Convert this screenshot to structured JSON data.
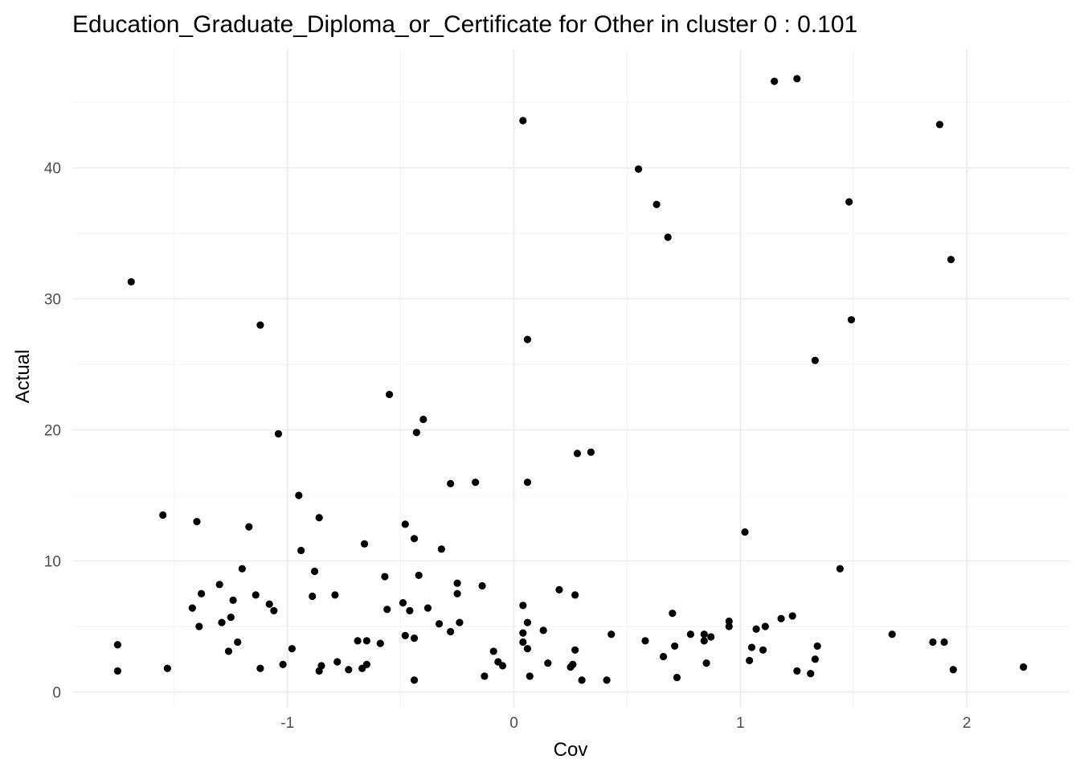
{
  "chart_data": {
    "type": "scatter",
    "title": "Education_Graduate_Diploma_or_Certificate for Other in cluster 0 : 0.101",
    "xlabel": "Cov",
    "ylabel": "Actual",
    "xlim": [
      -1.95,
      2.45
    ],
    "ylim": [
      -1.2,
      49.0
    ],
    "x_ticks": [
      -1,
      0,
      1,
      2
    ],
    "x_tick_labels": [
      "-1",
      "0",
      "1",
      "2"
    ],
    "y_ticks": [
      0,
      10,
      20,
      30,
      40
    ],
    "y_tick_labels": [
      "0",
      "10",
      "20",
      "30",
      "40"
    ],
    "grid": true,
    "legend": "none",
    "point_color": "#000000",
    "points": [
      [
        -1.75,
        1.6
      ],
      [
        -1.75,
        3.6
      ],
      [
        -1.69,
        31.3
      ],
      [
        -1.55,
        13.5
      ],
      [
        -1.53,
        1.8
      ],
      [
        -1.42,
        6.4
      ],
      [
        -1.4,
        13.0
      ],
      [
        -1.39,
        5.0
      ],
      [
        -1.38,
        7.5
      ],
      [
        -1.3,
        8.2
      ],
      [
        -1.29,
        5.3
      ],
      [
        -1.26,
        3.1
      ],
      [
        -1.25,
        5.7
      ],
      [
        -1.24,
        7.0
      ],
      [
        -1.22,
        3.8
      ],
      [
        -1.2,
        9.4
      ],
      [
        -1.17,
        12.6
      ],
      [
        -1.14,
        7.4
      ],
      [
        -1.12,
        28.0
      ],
      [
        -1.12,
        1.8
      ],
      [
        -1.08,
        6.7
      ],
      [
        -1.06,
        6.2
      ],
      [
        -1.04,
        19.7
      ],
      [
        -1.02,
        2.1
      ],
      [
        -0.98,
        3.3
      ],
      [
        -0.95,
        15.0
      ],
      [
        -0.94,
        10.8
      ],
      [
        -0.89,
        7.3
      ],
      [
        -0.88,
        9.2
      ],
      [
        -0.86,
        1.6
      ],
      [
        -0.86,
        13.3
      ],
      [
        -0.85,
        2.0
      ],
      [
        -0.79,
        7.4
      ],
      [
        -0.78,
        2.3
      ],
      [
        -0.73,
        1.7
      ],
      [
        -0.69,
        3.9
      ],
      [
        -0.67,
        1.8
      ],
      [
        -0.66,
        11.3
      ],
      [
        -0.65,
        3.9
      ],
      [
        -0.65,
        2.1
      ],
      [
        -0.59,
        3.7
      ],
      [
        -0.57,
        8.8
      ],
      [
        -0.56,
        6.3
      ],
      [
        -0.55,
        22.7
      ],
      [
        -0.49,
        6.8
      ],
      [
        -0.48,
        4.3
      ],
      [
        -0.48,
        12.8
      ],
      [
        -0.46,
        6.2
      ],
      [
        -0.44,
        11.7
      ],
      [
        -0.44,
        4.1
      ],
      [
        -0.44,
        0.9
      ],
      [
        -0.43,
        19.8
      ],
      [
        -0.42,
        8.9
      ],
      [
        -0.4,
        20.8
      ],
      [
        -0.38,
        6.4
      ],
      [
        -0.33,
        5.2
      ],
      [
        -0.32,
        10.9
      ],
      [
        -0.28,
        15.9
      ],
      [
        -0.28,
        4.6
      ],
      [
        -0.25,
        8.3
      ],
      [
        -0.25,
        7.5
      ],
      [
        -0.24,
        5.3
      ],
      [
        -0.17,
        16.0
      ],
      [
        -0.14,
        8.1
      ],
      [
        -0.13,
        1.2
      ],
      [
        -0.09,
        3.1
      ],
      [
        -0.07,
        2.3
      ],
      [
        -0.05,
        2.0
      ],
      [
        0.04,
        43.6
      ],
      [
        0.04,
        6.6
      ],
      [
        0.04,
        4.5
      ],
      [
        0.04,
        3.8
      ],
      [
        0.06,
        16.0
      ],
      [
        0.06,
        26.9
      ],
      [
        0.06,
        5.3
      ],
      [
        0.06,
        3.3
      ],
      [
        0.07,
        1.2
      ],
      [
        0.13,
        4.7
      ],
      [
        0.15,
        2.2
      ],
      [
        0.2,
        7.8
      ],
      [
        0.25,
        1.9
      ],
      [
        0.26,
        2.1
      ],
      [
        0.27,
        7.4
      ],
      [
        0.27,
        3.2
      ],
      [
        0.28,
        18.2
      ],
      [
        0.3,
        0.9
      ],
      [
        0.34,
        18.3
      ],
      [
        0.41,
        0.9
      ],
      [
        0.43,
        4.4
      ],
      [
        0.55,
        39.9
      ],
      [
        0.58,
        3.9
      ],
      [
        0.63,
        37.2
      ],
      [
        0.66,
        2.7
      ],
      [
        0.68,
        34.7
      ],
      [
        0.7,
        6.0
      ],
      [
        0.71,
        3.5
      ],
      [
        0.72,
        1.1
      ],
      [
        0.78,
        4.4
      ],
      [
        0.84,
        4.4
      ],
      [
        0.84,
        3.9
      ],
      [
        0.85,
        2.2
      ],
      [
        0.87,
        4.2
      ],
      [
        0.95,
        5.4
      ],
      [
        0.95,
        5.0
      ],
      [
        1.02,
        12.2
      ],
      [
        1.04,
        2.4
      ],
      [
        1.05,
        3.4
      ],
      [
        1.07,
        4.8
      ],
      [
        1.1,
        3.2
      ],
      [
        1.11,
        5.0
      ],
      [
        1.15,
        46.6
      ],
      [
        1.18,
        5.6
      ],
      [
        1.23,
        5.8
      ],
      [
        1.25,
        46.8
      ],
      [
        1.25,
        1.6
      ],
      [
        1.31,
        1.4
      ],
      [
        1.33,
        25.3
      ],
      [
        1.33,
        2.5
      ],
      [
        1.34,
        3.5
      ],
      [
        1.44,
        9.4
      ],
      [
        1.48,
        37.4
      ],
      [
        1.49,
        28.4
      ],
      [
        1.67,
        4.4
      ],
      [
        1.85,
        3.8
      ],
      [
        1.88,
        43.3
      ],
      [
        1.9,
        3.8
      ],
      [
        1.93,
        33.0
      ],
      [
        1.94,
        1.7
      ],
      [
        2.25,
        1.9
      ]
    ]
  }
}
